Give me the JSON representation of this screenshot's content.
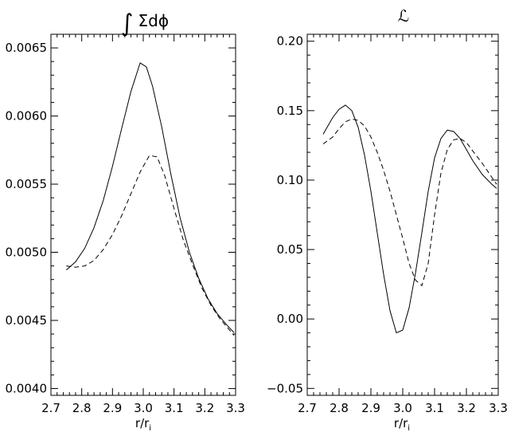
{
  "chart_data": [
    {
      "type": "line",
      "title": "∫ Σdϕ",
      "xlabel": "r/r",
      "xlabel_sub": "i",
      "xlim": [
        2.7,
        3.3
      ],
      "ylim": [
        0.00395,
        0.0066
      ],
      "xticks": [
        "2.7",
        "2.8",
        "2.9",
        "3.0",
        "3.1",
        "3.2",
        "3.3"
      ],
      "yticks": [
        "0.0040",
        "0.0045",
        "0.0050",
        "0.0055",
        "0.0060",
        "0.0065"
      ],
      "grid": false,
      "series": [
        {
          "style": "solid",
          "x": [
            2.75,
            2.78,
            2.81,
            2.84,
            2.87,
            2.9,
            2.93,
            2.96,
            2.99,
            3.01,
            3.03,
            3.06,
            3.09,
            3.12,
            3.15,
            3.18,
            3.21,
            3.24,
            3.27,
            3.295
          ],
          "y": [
            0.00487,
            0.00493,
            0.00503,
            0.00518,
            0.00538,
            0.00563,
            0.00591,
            0.00618,
            0.00639,
            0.00636,
            0.00622,
            0.00592,
            0.00557,
            0.00525,
            0.005,
            0.00481,
            0.00466,
            0.00455,
            0.00447,
            0.00441
          ]
        },
        {
          "style": "dashed",
          "x": [
            2.75,
            2.78,
            2.81,
            2.84,
            2.87,
            2.9,
            2.93,
            2.96,
            2.99,
            3.02,
            3.045,
            3.07,
            3.1,
            3.13,
            3.16,
            3.19,
            3.22,
            3.25,
            3.28,
            3.295
          ],
          "y": [
            0.0049,
            0.00489,
            0.0049,
            0.00494,
            0.00502,
            0.00513,
            0.00527,
            0.00543,
            0.00559,
            0.00571,
            0.0057,
            0.00556,
            0.00532,
            0.00509,
            0.00491,
            0.00474,
            0.00461,
            0.00451,
            0.00443,
            0.00439
          ]
        }
      ]
    },
    {
      "type": "line",
      "title": "ℒ",
      "xlabel": "r/r",
      "xlabel_sub": "i",
      "xlim": [
        2.7,
        3.3
      ],
      "ylim": [
        -0.055,
        0.205
      ],
      "xticks": [
        "2.7",
        "2.8",
        "2.9",
        "3.0",
        "3.1",
        "3.2",
        "3.3"
      ],
      "yticks": [
        "−0.05",
        "0.00",
        "0.05",
        "0.10",
        "0.15",
        "0.20"
      ],
      "grid": false,
      "series": [
        {
          "style": "solid",
          "x": [
            2.75,
            2.78,
            2.8,
            2.82,
            2.84,
            2.86,
            2.88,
            2.9,
            2.92,
            2.94,
            2.96,
            2.98,
            3.0,
            3.02,
            3.04,
            3.06,
            3.08,
            3.1,
            3.12,
            3.14,
            3.16,
            3.18,
            3.2,
            3.22,
            3.25,
            3.28,
            3.295
          ],
          "y": [
            0.133,
            0.145,
            0.151,
            0.154,
            0.15,
            0.138,
            0.118,
            0.092,
            0.062,
            0.032,
            0.006,
            -0.01,
            -0.008,
            0.008,
            0.033,
            0.062,
            0.092,
            0.116,
            0.13,
            0.136,
            0.135,
            0.13,
            0.122,
            0.114,
            0.104,
            0.097,
            0.094
          ]
        },
        {
          "style": "dashed",
          "x": [
            2.75,
            2.78,
            2.8,
            2.82,
            2.84,
            2.86,
            2.88,
            2.9,
            2.92,
            2.94,
            2.96,
            2.98,
            3.0,
            3.02,
            3.04,
            3.06,
            3.08,
            3.1,
            3.12,
            3.14,
            3.16,
            3.18,
            3.2,
            3.22,
            3.25,
            3.28,
            3.295
          ],
          "y": [
            0.126,
            0.131,
            0.137,
            0.142,
            0.144,
            0.143,
            0.139,
            0.131,
            0.12,
            0.107,
            0.092,
            0.075,
            0.058,
            0.04,
            0.028,
            0.024,
            0.04,
            0.075,
            0.105,
            0.122,
            0.129,
            0.13,
            0.127,
            0.121,
            0.112,
            0.102,
            0.097
          ]
        }
      ]
    }
  ]
}
